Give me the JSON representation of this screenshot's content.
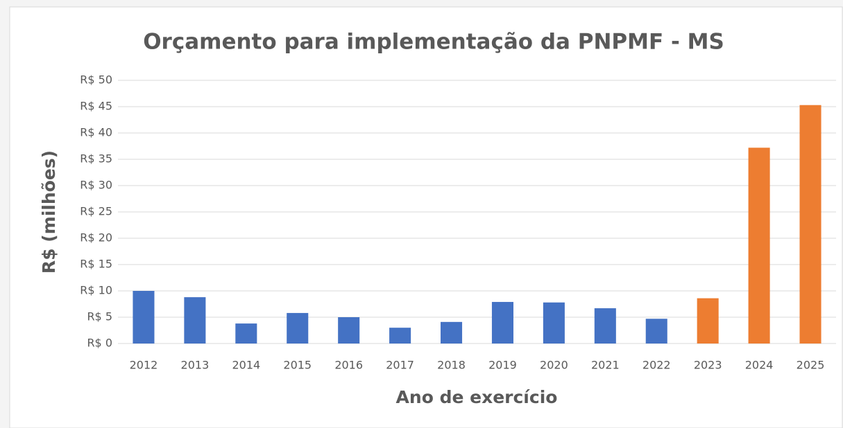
{
  "chart_data": {
    "type": "bar",
    "title": "Orçamento para implementação da PNPMF - MS",
    "x_label": "Ano de exercício",
    "y_label": "R$ (milhões)",
    "categories": [
      "2012",
      "2013",
      "2014",
      "2015",
      "2016",
      "2017",
      "2018",
      "2019",
      "2020",
      "2021",
      "2022",
      "2023",
      "2024",
      "2025"
    ],
    "values": [
      10.0,
      8.8,
      3.8,
      5.8,
      5.0,
      3.0,
      4.1,
      7.9,
      7.8,
      6.7,
      4.7,
      8.6,
      37.2,
      45.3
    ],
    "colors": [
      "#4472c4",
      "#4472c4",
      "#4472c4",
      "#4472c4",
      "#4472c4",
      "#4472c4",
      "#4472c4",
      "#4472c4",
      "#4472c4",
      "#4472c4",
      "#4472c4",
      "#ed7d31",
      "#ed7d31",
      "#ed7d31"
    ],
    "ylim": [
      0,
      50
    ],
    "yticks": [
      {
        "value": 0,
        "label": "R$ 0"
      },
      {
        "value": 5,
        "label": "R$ 5"
      },
      {
        "value": 10,
        "label": "R$ 10"
      },
      {
        "value": 15,
        "label": "R$ 15"
      },
      {
        "value": 20,
        "label": "R$ 20"
      },
      {
        "value": 25,
        "label": "R$ 25"
      },
      {
        "value": 30,
        "label": "R$ 30"
      },
      {
        "value": 35,
        "label": "R$ 35"
      },
      {
        "value": 40,
        "label": "R$ 40"
      },
      {
        "value": 45,
        "label": "R$ 45"
      },
      {
        "value": 50,
        "label": "R$ 50"
      }
    ],
    "grid": true
  }
}
